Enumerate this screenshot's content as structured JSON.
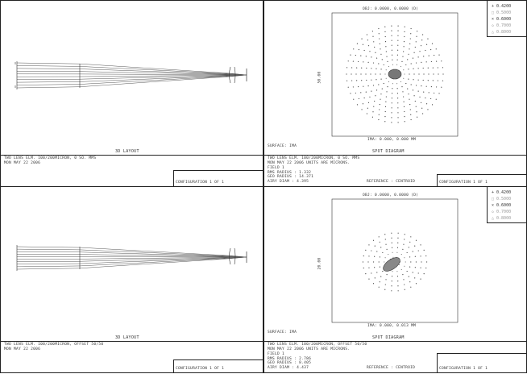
{
  "panels": [
    {
      "layout_label": "3D LAYOUT",
      "title": "TWO LENS ELM. 100/200MICRON, 0 SO. MMS",
      "date": "MON MAY 22 2006",
      "footer_right": "CONFIGURATION 1 OF 1"
    },
    {
      "spot_title": "OBJ: 0.0000, 0.0000 (D)",
      "ima_label": "IMA: 0.000, 0.000 MM",
      "surface_label": "SURFACE: IMA",
      "diagram_label": "SPOT DIAGRAM",
      "scale_label": "50.00",
      "title": "TWO LENS ELM. 100/200MICRON, 0 SO. MMS",
      "date": "MON MAY 22 2006  UNITS ARE MICRONS.",
      "field": "FIELD    1",
      "rms_radius": "RMS RADIUS :   1.332",
      "geo_radius": "GEO RADIUS :   14.371",
      "airy": "AIRY DIAM :    4.395",
      "reference": "REFERENCE : CENTROID",
      "footer_right": "CONFIGURATION 1 OF 1",
      "legend": [
        "0.4200",
        "0.5000",
        "0.6000",
        "0.7000",
        "0.8000"
      ]
    },
    {
      "layout_label": "3D LAYOUT",
      "title": "TWO LENS ELM. 100/200MICRON, OFFSET 50/50",
      "date": "MON MAY 22 2006",
      "footer_right": "CONFIGURATION 1 OF 1"
    },
    {
      "spot_title": "OBJ: 0.0000, 0.0000 (D)",
      "ima_label": "IMA: 0.000, 0.013 MM",
      "surface_label": "SURFACE: IMA",
      "diagram_label": "SPOT DIAGRAM",
      "scale_label": "20.00",
      "title": "TWO LENS ELM. 100/200MICRON, OFFSET 50/50",
      "date": "MON MAY 22 2006  UNITS ARE MICRONS.",
      "field": "FIELD    1",
      "rms_radius": "RMS RADIUS :   2.786",
      "geo_radius": "GEO RADIUS :   8.405",
      "airy": "AIRY DIAM :    4.437",
      "reference": "REFERENCE : CENTROID",
      "footer_right": "CONFIGURATION 1 OF 1",
      "legend": [
        "0.4200",
        "0.5000",
        "0.6000",
        "0.7000",
        "0.8000"
      ]
    }
  ],
  "colors": {
    "ink": "#333333",
    "frame": "#222222",
    "background": "#ffffff"
  }
}
